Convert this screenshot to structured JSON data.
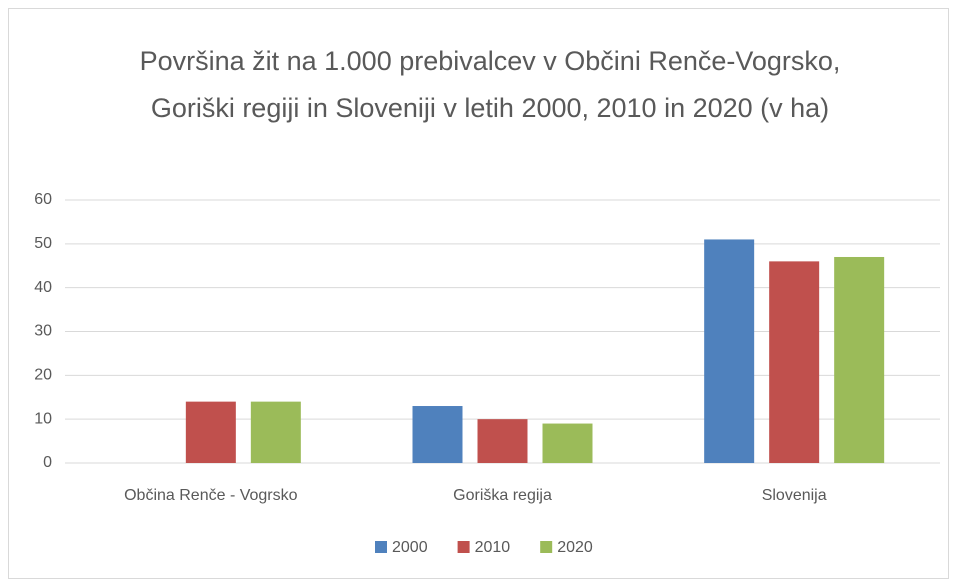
{
  "chart_data": {
    "type": "bar",
    "title": "Površina žit na 1.000 prebivalcev v Občini Renče-Vogrsko, Goriški regiji in Sloveniji v letih 2000, 2010 in 2020 (v ha)",
    "categories": [
      "Občina Renče - Vogrsko",
      "Goriška regija",
      "Slovenija"
    ],
    "series": [
      {
        "name": "2000",
        "color": "#4f81bd",
        "values": [
          0,
          13,
          51
        ]
      },
      {
        "name": "2010",
        "color": "#c0504d",
        "values": [
          14,
          10,
          46
        ]
      },
      {
        "name": "2020",
        "color": "#9bbb59",
        "values": [
          14,
          9,
          47
        ]
      }
    ],
    "ylim": [
      0,
      60
    ],
    "yticks": [
      0,
      10,
      20,
      30,
      40,
      50,
      60
    ],
    "grid": true,
    "legend": "bottom"
  }
}
